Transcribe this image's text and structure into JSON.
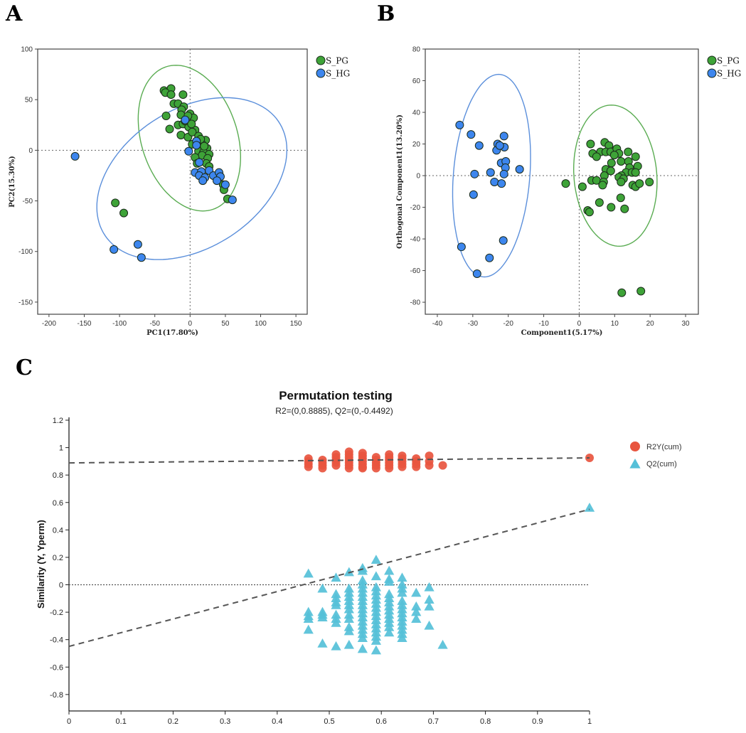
{
  "panel_labels": [
    "A",
    "B",
    "C"
  ],
  "colors": {
    "green": "#3ea338",
    "blue": "#3d86ee",
    "green_ellipse": "#5aac52",
    "blue_ellipse": "#5b8fdb",
    "red": "#e8553f",
    "teal": "#55c0d8",
    "dash": "#555555"
  },
  "chart_data": [
    {
      "type": "scatter",
      "title": "",
      "xlabel": "PC1(17.80%)",
      "ylabel": "PC2(15.30%)",
      "xlim": [
        -216,
        166
      ],
      "ylim": [
        -162,
        100
      ],
      "xticks": [
        -200,
        -150,
        -100,
        -50,
        0,
        50,
        100,
        150
      ],
      "yticks": [
        -150,
        -100,
        -50,
        0,
        50,
        100
      ],
      "legend_position": "top-right outside",
      "series": [
        {
          "name": "S_PG",
          "color_key": "green",
          "points": [
            [
              -37,
              59
            ],
            [
              -27,
              61
            ],
            [
              -35,
              57
            ],
            [
              -27,
              55
            ],
            [
              -10,
              55
            ],
            [
              -23,
              46
            ],
            [
              -17,
              46
            ],
            [
              -9,
              43
            ],
            [
              -12,
              40
            ],
            [
              -13,
              35
            ],
            [
              -34,
              34
            ],
            [
              0,
              36
            ],
            [
              5,
              32
            ],
            [
              -3,
              34
            ],
            [
              -17,
              25
            ],
            [
              -10,
              26
            ],
            [
              -29,
              21
            ],
            [
              -2,
              23
            ],
            [
              7,
              20
            ],
            [
              -13,
              15
            ],
            [
              -3,
              13
            ],
            [
              3,
              18
            ],
            [
              12,
              14
            ],
            [
              22,
              10
            ],
            [
              17,
              6
            ],
            [
              24,
              2
            ],
            [
              3,
              6
            ],
            [
              12,
              -1
            ],
            [
              19,
              -2
            ],
            [
              27,
              -4
            ],
            [
              17,
              -5
            ],
            [
              7,
              -7
            ],
            [
              25,
              -8
            ],
            [
              10,
              -13
            ],
            [
              23,
              -13
            ],
            [
              27,
              -16
            ],
            [
              20,
              4
            ],
            [
              47,
              -34
            ],
            [
              48,
              -39
            ],
            [
              53,
              -48
            ],
            [
              -106,
              -52
            ],
            [
              -94,
              -62
            ],
            [
              -7,
              29
            ],
            [
              2,
              26
            ],
            [
              15,
              11
            ]
          ],
          "ellipse": {
            "center": [
              -1,
              12
            ],
            "conj_a": [
              -19,
              72
            ],
            "conj_b": [
              70,
              0
            ]
          }
        },
        {
          "name": "S_HG",
          "color_key": "blue",
          "points": [
            [
              -163,
              -6
            ],
            [
              -7,
              30
            ],
            [
              9,
              9
            ],
            [
              9,
              5
            ],
            [
              -2,
              -1
            ],
            [
              13,
              -12
            ],
            [
              7,
              -22
            ],
            [
              16,
              -21
            ],
            [
              27,
              -20
            ],
            [
              13,
              -25
            ],
            [
              21,
              -27
            ],
            [
              18,
              -30
            ],
            [
              33,
              -25
            ],
            [
              41,
              -22
            ],
            [
              43,
              -26
            ],
            [
              38,
              -30
            ],
            [
              50,
              -34
            ],
            [
              60,
              -49
            ],
            [
              -74,
              -93
            ],
            [
              -108,
              -98
            ],
            [
              -69,
              -106
            ]
          ],
          "ellipse": {
            "center": [
              2.5,
              -28
            ],
            "conj_a": [
              47.5,
              80
            ],
            "conj_b": [
              126,
              0
            ]
          }
        }
      ]
    },
    {
      "type": "scatter",
      "title": "",
      "xlabel": "Component1(5.17%)",
      "ylabel": "Orthogonal Component1(13.20%)",
      "xlim": [
        -43.4,
        33.6
      ],
      "ylim": [
        -87.6,
        80
      ],
      "xticks": [
        -40,
        -30,
        -20,
        -10,
        0,
        10,
        20,
        30
      ],
      "yticks": [
        -80,
        -60,
        -40,
        -20,
        0,
        20,
        40,
        60,
        80
      ],
      "legend_position": "top-right outside",
      "series": [
        {
          "name": "S_PG",
          "color_key": "green",
          "points": [
            [
              3.2,
              20
            ],
            [
              7.2,
              21
            ],
            [
              8.4,
              19
            ],
            [
              3.8,
              14
            ],
            [
              6,
              15
            ],
            [
              4.9,
              12
            ],
            [
              7.5,
              15
            ],
            [
              8.9,
              15
            ],
            [
              10.6,
              17
            ],
            [
              11.2,
              14
            ],
            [
              9.9,
              13
            ],
            [
              13.8,
              15
            ],
            [
              15.9,
              12
            ],
            [
              11.8,
              9
            ],
            [
              13.9,
              9
            ],
            [
              9.1,
              8
            ],
            [
              14.2,
              5
            ],
            [
              16.5,
              6
            ],
            [
              7.5,
              4
            ],
            [
              8.9,
              3
            ],
            [
              13.2,
              2
            ],
            [
              14.9,
              2
            ],
            [
              7.1,
              0
            ],
            [
              11.9,
              0
            ],
            [
              15.9,
              2
            ],
            [
              3.5,
              -3
            ],
            [
              4.9,
              -3
            ],
            [
              6.9,
              -4
            ],
            [
              6.6,
              -6
            ],
            [
              11.2,
              -1
            ],
            [
              12.5,
              -2
            ],
            [
              11.8,
              -4
            ],
            [
              15.1,
              -6
            ],
            [
              15.9,
              -7
            ],
            [
              17,
              -5
            ],
            [
              19.8,
              -4
            ],
            [
              -3.8,
              -5
            ],
            [
              0.9,
              -7
            ],
            [
              5.7,
              -17
            ],
            [
              11.7,
              -14
            ],
            [
              9,
              -20
            ],
            [
              12.8,
              -21
            ],
            [
              2.4,
              -22
            ],
            [
              2.9,
              -23
            ],
            [
              12,
              -74
            ],
            [
              17.4,
              -73
            ]
          ],
          "ellipse": {
            "center": [
              10.2,
              0
            ],
            "conj_a": [
              -1.1,
              44.6
            ],
            "conj_b": [
              11.7,
              0
            ]
          }
        },
        {
          "name": "S_HG",
          "color_key": "blue",
          "points": [
            [
              -33.7,
              32
            ],
            [
              -30.5,
              26
            ],
            [
              -28.2,
              19
            ],
            [
              -21.2,
              25
            ],
            [
              -23,
              20
            ],
            [
              -23.3,
              16
            ],
            [
              -21.1,
              18
            ],
            [
              -22.4,
              19
            ],
            [
              -22,
              8
            ],
            [
              -20.7,
              9
            ],
            [
              -20.8,
              5
            ],
            [
              -16.8,
              4
            ],
            [
              -25,
              2
            ],
            [
              -29.5,
              1
            ],
            [
              -21.2,
              1
            ],
            [
              -23.9,
              -4
            ],
            [
              -21.9,
              -5
            ],
            [
              -29.8,
              -12
            ],
            [
              -21.4,
              -41
            ],
            [
              -33.2,
              -45
            ],
            [
              -25.3,
              -52
            ],
            [
              -28.8,
              -62
            ]
          ],
          "ellipse": {
            "center": [
              -24.7,
              0
            ],
            "conj_a": [
              2,
              64
            ],
            "conj_b": [
              10.8,
              0
            ]
          }
        }
      ]
    },
    {
      "type": "scatter",
      "title": "Permutation testing",
      "subtitle": "R2=(0,0.8885), Q2=(0,-0.4492)",
      "xlabel": "",
      "ylabel": "Similarity (Y, Yperm)",
      "xlim": [
        0,
        1
      ],
      "ylim": [
        -0.92,
        1.2
      ],
      "xticks": [
        "0",
        "0.1",
        "0.2",
        "0.3",
        "0.4",
        "0.5",
        "0.6",
        "0.7",
        "0.8",
        "0.9",
        "1"
      ],
      "yticks": [
        "-0.8",
        "-0.6",
        "-0.4",
        "-0.2",
        "0",
        "0.2",
        "0.4",
        "0.6",
        "0.8",
        "1",
        "1.2"
      ],
      "legend_position": "top-right",
      "series": [
        {
          "name": "R2Y(cum)",
          "marker": "circle",
          "color_key": "red",
          "columns": [
            [
              0.46,
              [
                0.92,
                0.9,
                0.88,
                0.86
              ]
            ],
            [
              0.487,
              [
                0.91,
                0.89,
                0.87,
                0.85
              ]
            ],
            [
              0.513,
              [
                0.95,
                0.93,
                0.91,
                0.89,
                0.87
              ]
            ],
            [
              0.538,
              [
                0.97,
                0.95,
                0.93,
                0.91,
                0.89,
                0.87,
                0.85
              ]
            ],
            [
              0.564,
              [
                0.96,
                0.94,
                0.92,
                0.9,
                0.88,
                0.86,
                0.85
              ]
            ],
            [
              0.59,
              [
                0.93,
                0.91,
                0.89,
                0.87,
                0.85
              ]
            ],
            [
              0.615,
              [
                0.95,
                0.93,
                0.91,
                0.89,
                0.87,
                0.85
              ]
            ],
            [
              0.64,
              [
                0.94,
                0.92,
                0.9,
                0.88,
                0.86
              ]
            ],
            [
              0.667,
              [
                0.92,
                0.9,
                0.88,
                0.86
              ]
            ],
            [
              0.692,
              [
                0.94,
                0.9,
                0.87
              ]
            ],
            [
              0.718,
              [
                0.87
              ]
            ],
            [
              1.0,
              [
                0.925
              ]
            ]
          ],
          "regression": [
            [
              0,
              0.8885
            ],
            [
              1,
              0.925
            ]
          ]
        },
        {
          "name": "Q2(cum)",
          "marker": "triangle",
          "color_key": "teal",
          "columns": [
            [
              0.46,
              [
                0.08,
                -0.2,
                -0.23,
                -0.25,
                -0.33
              ]
            ],
            [
              0.487,
              [
                -0.03,
                -0.2,
                -0.22,
                -0.24,
                -0.43
              ]
            ],
            [
              0.513,
              [
                0.05,
                -0.07,
                -0.1,
                -0.13,
                -0.15,
                -0.22,
                -0.25,
                -0.28,
                -0.45
              ]
            ],
            [
              0.538,
              [
                0.09,
                -0.03,
                -0.06,
                -0.09,
                -0.12,
                -0.15,
                -0.18,
                -0.22,
                -0.25,
                -0.31,
                -0.34,
                -0.44
              ]
            ],
            [
              0.564,
              [
                0.12,
                0.1,
                0.03,
                0.0,
                -0.03,
                -0.06,
                -0.09,
                -0.12,
                -0.15,
                -0.18,
                -0.21,
                -0.24,
                -0.27,
                -0.3,
                -0.33,
                -0.36,
                -0.39,
                -0.47
              ]
            ],
            [
              0.59,
              [
                0.18,
                0.06,
                -0.02,
                -0.05,
                -0.08,
                -0.11,
                -0.14,
                -0.17,
                -0.2,
                -0.23,
                -0.26,
                -0.29,
                -0.32,
                -0.35,
                -0.38,
                -0.41,
                -0.48
              ]
            ],
            [
              0.615,
              [
                0.1,
                0.04,
                0.02,
                -0.07,
                -0.1,
                -0.13,
                -0.16,
                -0.19,
                -0.22,
                -0.25,
                -0.28,
                -0.31,
                -0.35
              ]
            ],
            [
              0.64,
              [
                0.05,
                0.0,
                -0.03,
                -0.06,
                -0.12,
                -0.15,
                -0.18,
                -0.21,
                -0.24,
                -0.27,
                -0.3,
                -0.33,
                -0.36,
                -0.39
              ]
            ],
            [
              0.667,
              [
                -0.06,
                -0.16,
                -0.2,
                -0.25
              ]
            ],
            [
              0.692,
              [
                -0.02,
                -0.11,
                -0.16,
                -0.3
              ]
            ],
            [
              0.718,
              [
                -0.44
              ]
            ],
            [
              1.0,
              [
                0.56
              ]
            ]
          ],
          "regression": [
            [
              0,
              -0.4492
            ],
            [
              1,
              0.55
            ]
          ]
        }
      ]
    }
  ]
}
